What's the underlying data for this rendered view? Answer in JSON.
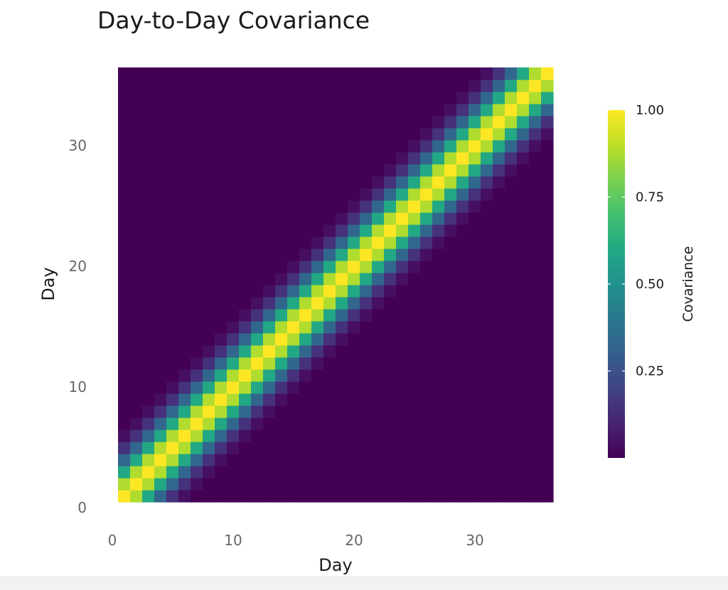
{
  "chart_data": {
    "type": "heatmap",
    "title": "Day-to-Day Covariance",
    "xlabel": "Day",
    "ylabel": "Day",
    "xlim": [
      0,
      36
    ],
    "ylim": [
      0,
      36
    ],
    "x_ticks": [
      0,
      10,
      20,
      30
    ],
    "y_ticks": [
      0,
      10,
      20,
      30
    ],
    "days": 36,
    "cell_values_by_day_distance": [
      1.0,
      0.88,
      0.6,
      0.33,
      0.14,
      0.04,
      0.0
    ],
    "values_note_omitted": "",
    "colorbar": {
      "label": "Covariance",
      "ticks": [
        0.25,
        0.5,
        0.75,
        1.0
      ],
      "tick_labels": [
        "0.25",
        "0.50",
        "0.75",
        "1.00"
      ],
      "range": [
        0.0,
        1.0
      ]
    },
    "colormap": "viridis",
    "grid": false
  }
}
